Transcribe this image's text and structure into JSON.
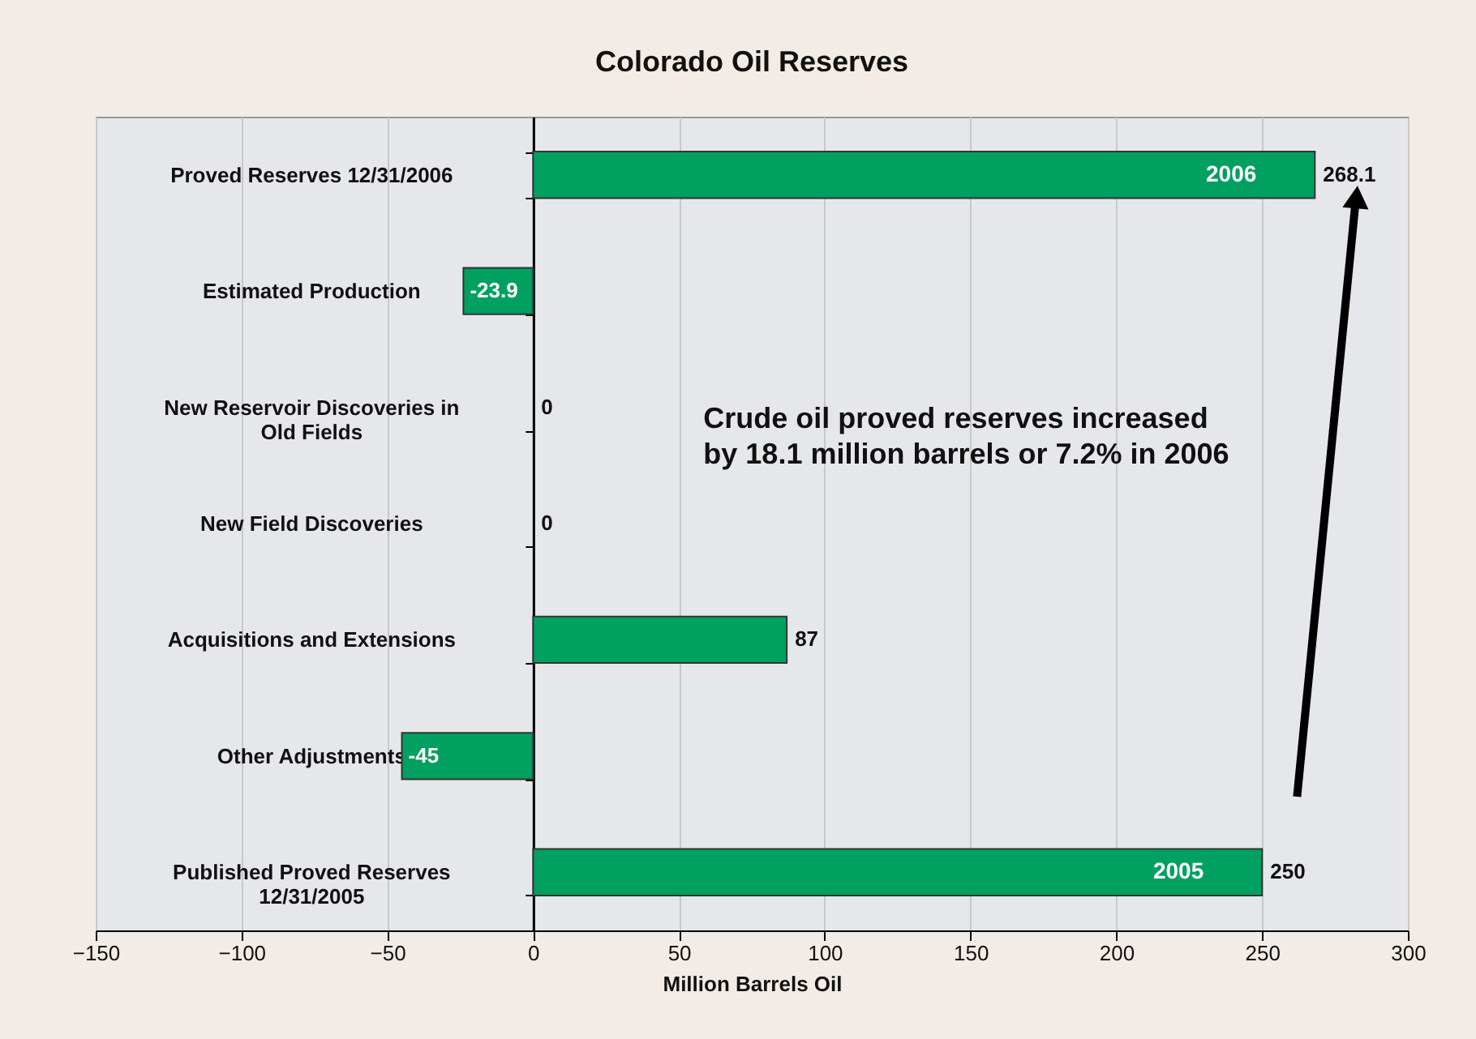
{
  "chart_data": {
    "type": "bar",
    "orientation": "horizontal",
    "title": "Colorado Oil Reserves",
    "xlabel": "Million Barrels Oil",
    "categories": [
      "Proved Reserves 12/31/2006",
      "Estimated Production",
      "New Reservoir Discoveries in\nOld Fields",
      "New Field Discoveries",
      "Acquisitions and Extensions",
      "Other Adjustments",
      "Published Proved Reserves\n12/31/2005"
    ],
    "values": [
      268.1,
      -23.9,
      0,
      0,
      87,
      -45,
      250
    ],
    "color": "#00a060",
    "xlim": [
      -150,
      300
    ],
    "xticks": [
      -150,
      -100,
      -50,
      0,
      50,
      100,
      150,
      200,
      250,
      300
    ],
    "grid": "x",
    "legend": false,
    "data_labels": true,
    "annotations": [
      "2006",
      "2005",
      "Crude oil proved reserves increased\nby 18.1 million barrels or 7.2% in 2006"
    ]
  }
}
